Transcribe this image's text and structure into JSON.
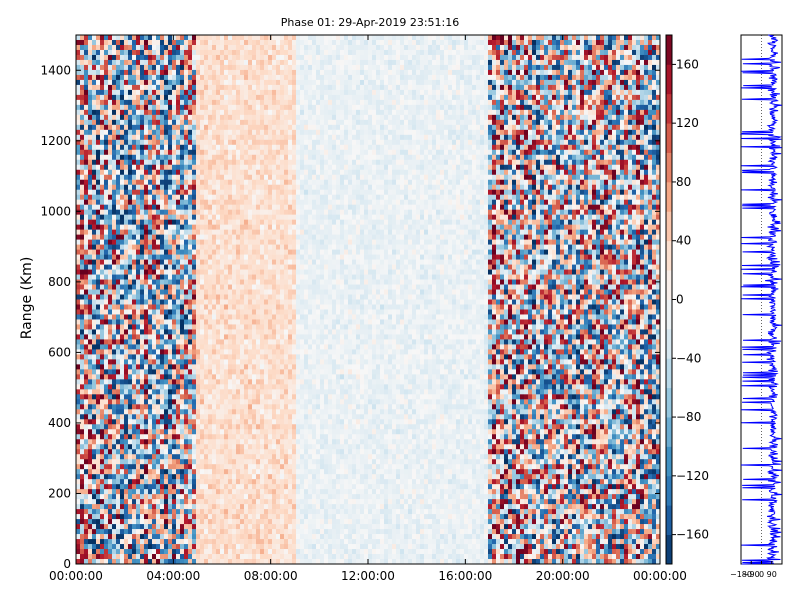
{
  "chart_data": [
    {
      "type": "heatmap",
      "title": "Phase 01: 29-Apr-2019 23:51:16",
      "ylabel": "Range (Km)",
      "xlabel": "",
      "x_range": [
        "00:00:00",
        "24:00:00"
      ],
      "x_ticks": [
        "00:00:00",
        "04:00:00",
        "08:00:00",
        "12:00:00",
        "16:00:00",
        "20:00:00",
        "00:00:00"
      ],
      "ylim": [
        0,
        1500
      ],
      "y_ticks": [
        0,
        200,
        400,
        600,
        800,
        1000,
        1200,
        1400
      ],
      "colorbar": {
        "range": [
          -180,
          180
        ],
        "ticks": [
          160,
          120,
          80,
          40,
          0,
          -40,
          -80,
          -120,
          -160
        ],
        "tick_labels": [
          "160",
          "120",
          "80",
          "40",
          "0",
          "−40",
          "−80",
          "−120",
          "−160"
        ],
        "colormap": "RdBu_r (blue → white → red)"
      },
      "description_of_values": "Phase values are noisy (approx. ±180) from 00:00 to 05:00 and from 17:00 to 24:00; values are small positive (~+20 to +40) around 05:00–09:00 and near zero to slightly negative (~−10 to −30) from 09:00 to 17:00, across all ranges."
    },
    {
      "type": "line",
      "tick_labels": [
        "−180",
        "−90",
        "0",
        "90"
      ],
      "xlim": [
        -180,
        180
      ],
      "ylim": [
        0,
        1500
      ],
      "series_color": "#0000ff"
    }
  ],
  "colors": {
    "low": "#053061",
    "mid": "#f7f7f7",
    "high": "#67001f",
    "line": "#0000ff"
  }
}
